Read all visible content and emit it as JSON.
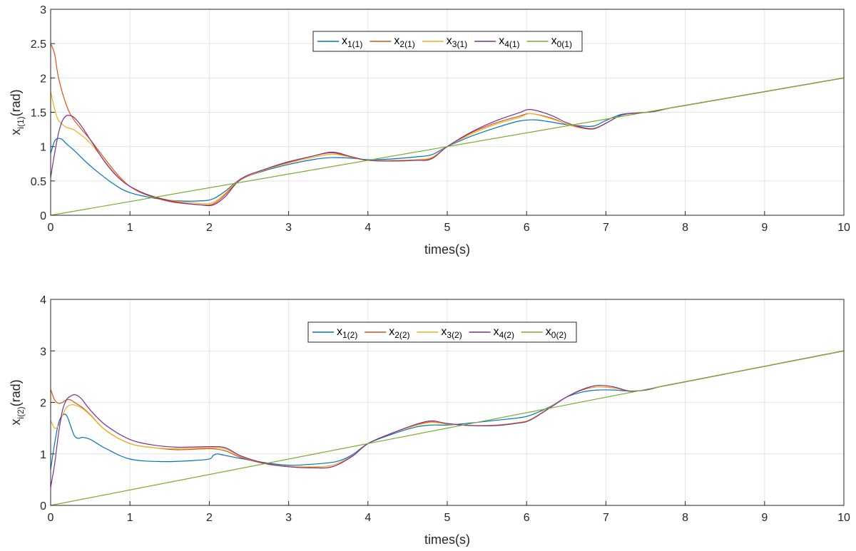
{
  "chart_data": [
    {
      "type": "line",
      "xlabel": "times(s)",
      "ylabel": {
        "base": "x",
        "sub": "i(1)",
        "unit": "(rad)"
      },
      "xlim": [
        0,
        10
      ],
      "ylim": [
        0,
        3
      ],
      "xticks": [
        "0",
        "1",
        "2",
        "3",
        "4",
        "5",
        "6",
        "7",
        "8",
        "9",
        "10"
      ],
      "yticks": [
        "0",
        "0.5",
        "1",
        "1.5",
        "2",
        "2.5",
        "3"
      ],
      "grid": true,
      "legend_position": "top-center",
      "series": [
        {
          "name": "x",
          "sub": "1(1)",
          "color": "#0072BD",
          "x": [
            0,
            0.05,
            0.1,
            0.15,
            0.2,
            0.3,
            0.5,
            0.8,
            1.0,
            1.3,
            1.6,
            1.9,
            2.05,
            2.2,
            2.4,
            2.7,
            3.0,
            3.3,
            3.55,
            3.8,
            4.0,
            4.3,
            4.6,
            4.8,
            5.0,
            5.3,
            5.6,
            5.9,
            6.1,
            6.3,
            6.5,
            6.7,
            6.85,
            7.0,
            7.2,
            7.4,
            7.6,
            7.8,
            8.0,
            9.0,
            10.0
          ],
          "y": [
            0.9,
            1.08,
            1.12,
            1.1,
            1.04,
            0.94,
            0.72,
            0.45,
            0.33,
            0.25,
            0.21,
            0.21,
            0.24,
            0.35,
            0.53,
            0.65,
            0.74,
            0.81,
            0.84,
            0.83,
            0.81,
            0.82,
            0.85,
            0.88,
            1.0,
            1.15,
            1.27,
            1.37,
            1.39,
            1.36,
            1.32,
            1.3,
            1.3,
            1.38,
            1.47,
            1.49,
            1.51,
            1.56,
            1.6,
            1.8,
            2.0
          ]
        },
        {
          "name": "x",
          "sub": "2(1)",
          "color": "#D95319",
          "x": [
            0,
            0.05,
            0.1,
            0.2,
            0.3,
            0.5,
            0.8,
            1.0,
            1.2,
            1.5,
            1.8,
            2.0,
            2.1,
            2.2,
            2.4,
            2.7,
            3.0,
            3.3,
            3.55,
            3.8,
            4.0,
            4.3,
            4.6,
            4.8,
            5.0,
            5.3,
            5.6,
            5.9,
            6.05,
            6.3,
            6.5,
            6.7,
            6.85,
            7.0,
            7.2,
            7.4,
            7.6,
            7.8,
            8.0,
            9.0,
            10.0
          ],
          "y": [
            2.5,
            2.35,
            2.0,
            1.6,
            1.38,
            1.1,
            0.65,
            0.42,
            0.3,
            0.2,
            0.16,
            0.15,
            0.2,
            0.3,
            0.52,
            0.66,
            0.77,
            0.86,
            0.91,
            0.84,
            0.8,
            0.79,
            0.8,
            0.83,
            1.0,
            1.2,
            1.34,
            1.44,
            1.48,
            1.42,
            1.33,
            1.27,
            1.26,
            1.34,
            1.46,
            1.49,
            1.51,
            1.56,
            1.6,
            1.8,
            2.0
          ]
        },
        {
          "name": "x",
          "sub": "3(1)",
          "color": "#EDB120",
          "x": [
            0,
            0.05,
            0.1,
            0.2,
            0.3,
            0.5,
            0.8,
            1.0,
            1.2,
            1.5,
            1.8,
            2.0,
            2.1,
            2.2,
            2.4,
            2.7,
            3.0,
            3.3,
            3.55,
            3.8,
            4.0,
            4.3,
            4.6,
            4.8,
            5.0,
            5.3,
            5.6,
            5.9,
            6.05,
            6.3,
            6.5,
            6.7,
            6.85,
            7.0,
            7.2,
            7.4,
            7.6,
            7.8,
            8.0,
            9.0,
            10.0
          ],
          "y": [
            1.8,
            1.55,
            1.38,
            1.28,
            1.24,
            1.05,
            0.62,
            0.42,
            0.31,
            0.22,
            0.18,
            0.17,
            0.22,
            0.32,
            0.53,
            0.66,
            0.76,
            0.84,
            0.89,
            0.84,
            0.8,
            0.8,
            0.81,
            0.84,
            1.0,
            1.18,
            1.32,
            1.42,
            1.48,
            1.41,
            1.33,
            1.28,
            1.27,
            1.34,
            1.46,
            1.49,
            1.51,
            1.56,
            1.6,
            1.8,
            2.0
          ]
        },
        {
          "name": "x",
          "sub": "4(1)",
          "color": "#7E2F8E",
          "x": [
            0,
            0.05,
            0.1,
            0.15,
            0.2,
            0.25,
            0.3,
            0.4,
            0.5,
            0.7,
            0.9,
            1.1,
            1.3,
            1.6,
            1.9,
            2.05,
            2.2,
            2.4,
            2.7,
            3.0,
            3.3,
            3.55,
            3.8,
            4.0,
            4.3,
            4.6,
            4.8,
            5.0,
            5.3,
            5.6,
            5.9,
            6.05,
            6.3,
            6.5,
            6.7,
            6.85,
            7.0,
            7.2,
            7.4,
            7.6,
            7.8,
            8.0,
            9.0,
            10.0
          ],
          "y": [
            0.55,
            0.9,
            1.2,
            1.38,
            1.45,
            1.45,
            1.42,
            1.28,
            1.1,
            0.75,
            0.5,
            0.36,
            0.27,
            0.19,
            0.15,
            0.15,
            0.27,
            0.53,
            0.67,
            0.78,
            0.86,
            0.92,
            0.85,
            0.8,
            0.79,
            0.8,
            0.82,
            1.0,
            1.21,
            1.37,
            1.49,
            1.54,
            1.46,
            1.35,
            1.28,
            1.26,
            1.34,
            1.46,
            1.49,
            1.51,
            1.56,
            1.6,
            1.8,
            2.0
          ]
        },
        {
          "name": "x",
          "sub": "0(1)",
          "color": "#77AC30",
          "x": [
            0,
            10
          ],
          "y": [
            0,
            2
          ]
        }
      ]
    },
    {
      "type": "line",
      "xlabel": "times(s)",
      "ylabel": {
        "base": "x",
        "sub": "i(2)",
        "unit": "(rad)"
      },
      "xlim": [
        0,
        10
      ],
      "ylim": [
        0,
        4
      ],
      "xticks": [
        "0",
        "1",
        "2",
        "3",
        "4",
        "5",
        "6",
        "7",
        "8",
        "9",
        "10"
      ],
      "yticks": [
        "0",
        "1",
        "2",
        "3",
        "4"
      ],
      "grid": true,
      "legend_position": "top-center",
      "series": [
        {
          "name": "x",
          "sub": "1(2)",
          "color": "#0072BD",
          "x": [
            0,
            0.05,
            0.1,
            0.15,
            0.2,
            0.25,
            0.3,
            0.35,
            0.4,
            0.5,
            0.7,
            1.0,
            1.4,
            1.8,
            2.0,
            2.05,
            2.1,
            2.2,
            2.4,
            2.7,
            3.0,
            3.3,
            3.6,
            3.8,
            4.0,
            4.3,
            4.6,
            4.8,
            5.0,
            5.3,
            5.6,
            5.9,
            6.05,
            6.3,
            6.5,
            6.7,
            6.9,
            7.1,
            7.3,
            7.5,
            7.7,
            8.0,
            9.0,
            10.0
          ],
          "y": [
            0.7,
            1.2,
            1.6,
            1.75,
            1.75,
            1.55,
            1.35,
            1.3,
            1.32,
            1.28,
            1.1,
            0.9,
            0.85,
            0.87,
            0.9,
            0.97,
            1.0,
            0.97,
            0.91,
            0.83,
            0.78,
            0.8,
            0.85,
            0.98,
            1.2,
            1.38,
            1.52,
            1.56,
            1.56,
            1.6,
            1.65,
            1.7,
            1.75,
            1.92,
            2.1,
            2.2,
            2.24,
            2.24,
            2.22,
            2.24,
            2.31,
            2.4,
            2.7,
            3.0
          ]
        },
        {
          "name": "x",
          "sub": "2(2)",
          "color": "#D95319",
          "x": [
            0,
            0.05,
            0.1,
            0.15,
            0.2,
            0.25,
            0.3,
            0.4,
            0.5,
            0.7,
            1.0,
            1.3,
            1.6,
            2.0,
            2.2,
            2.4,
            2.7,
            3.0,
            3.3,
            3.55,
            3.8,
            4.0,
            4.3,
            4.6,
            4.8,
            5.0,
            5.3,
            5.6,
            5.9,
            6.05,
            6.3,
            6.5,
            6.7,
            6.9,
            7.1,
            7.3,
            7.5,
            7.7,
            8.0,
            9.0,
            10.0
          ],
          "y": [
            2.25,
            2.05,
            1.98,
            2.0,
            2.05,
            2.05,
            2.0,
            1.9,
            1.76,
            1.45,
            1.2,
            1.12,
            1.08,
            1.1,
            1.06,
            0.93,
            0.81,
            0.75,
            0.73,
            0.75,
            0.95,
            1.2,
            1.4,
            1.56,
            1.62,
            1.58,
            1.55,
            1.55,
            1.6,
            1.66,
            1.9,
            2.1,
            2.24,
            2.3,
            2.28,
            2.22,
            2.24,
            2.31,
            2.4,
            2.7,
            3.0
          ]
        },
        {
          "name": "x",
          "sub": "3(2)",
          "color": "#EDB120",
          "x": [
            0,
            0.05,
            0.1,
            0.15,
            0.2,
            0.25,
            0.3,
            0.4,
            0.5,
            0.7,
            1.0,
            1.3,
            1.6,
            2.0,
            2.2,
            2.4,
            2.7,
            3.0,
            3.3,
            3.55,
            3.8,
            4.0,
            4.3,
            4.6,
            4.8,
            5.0,
            5.3,
            5.6,
            5.9,
            6.05,
            6.3,
            6.5,
            6.7,
            6.9,
            7.1,
            7.3,
            7.5,
            7.7,
            8.0,
            9.0,
            10.0
          ],
          "y": [
            1.65,
            1.5,
            1.55,
            1.75,
            1.9,
            1.95,
            1.95,
            1.88,
            1.75,
            1.45,
            1.2,
            1.12,
            1.1,
            1.12,
            1.1,
            0.95,
            0.82,
            0.76,
            0.75,
            0.78,
            0.96,
            1.2,
            1.4,
            1.55,
            1.61,
            1.58,
            1.55,
            1.56,
            1.61,
            1.67,
            1.91,
            2.1,
            2.25,
            2.3,
            2.28,
            2.22,
            2.24,
            2.31,
            2.4,
            2.7,
            3.0
          ]
        },
        {
          "name": "x",
          "sub": "4(2)",
          "color": "#7E2F8E",
          "x": [
            0,
            0.05,
            0.1,
            0.15,
            0.2,
            0.25,
            0.3,
            0.35,
            0.4,
            0.5,
            0.7,
            1.0,
            1.3,
            1.6,
            2.0,
            2.2,
            2.4,
            2.7,
            3.0,
            3.3,
            3.55,
            3.8,
            4.0,
            4.3,
            4.6,
            4.8,
            5.0,
            5.3,
            5.6,
            5.9,
            6.05,
            6.3,
            6.5,
            6.7,
            6.9,
            7.1,
            7.3,
            7.5,
            7.7,
            8.0,
            9.0,
            10.0
          ],
          "y": [
            0.35,
            0.8,
            1.4,
            1.85,
            2.05,
            2.12,
            2.15,
            2.12,
            2.05,
            1.85,
            1.55,
            1.28,
            1.17,
            1.13,
            1.14,
            1.12,
            0.96,
            0.82,
            0.75,
            0.73,
            0.75,
            0.95,
            1.2,
            1.4,
            1.57,
            1.64,
            1.59,
            1.55,
            1.55,
            1.6,
            1.66,
            1.9,
            2.1,
            2.25,
            2.33,
            2.3,
            2.22,
            2.24,
            2.31,
            2.4,
            2.7,
            3.0
          ]
        },
        {
          "name": "x",
          "sub": "0(2)",
          "color": "#77AC30",
          "x": [
            0,
            10
          ],
          "y": [
            0,
            3
          ]
        }
      ]
    }
  ]
}
